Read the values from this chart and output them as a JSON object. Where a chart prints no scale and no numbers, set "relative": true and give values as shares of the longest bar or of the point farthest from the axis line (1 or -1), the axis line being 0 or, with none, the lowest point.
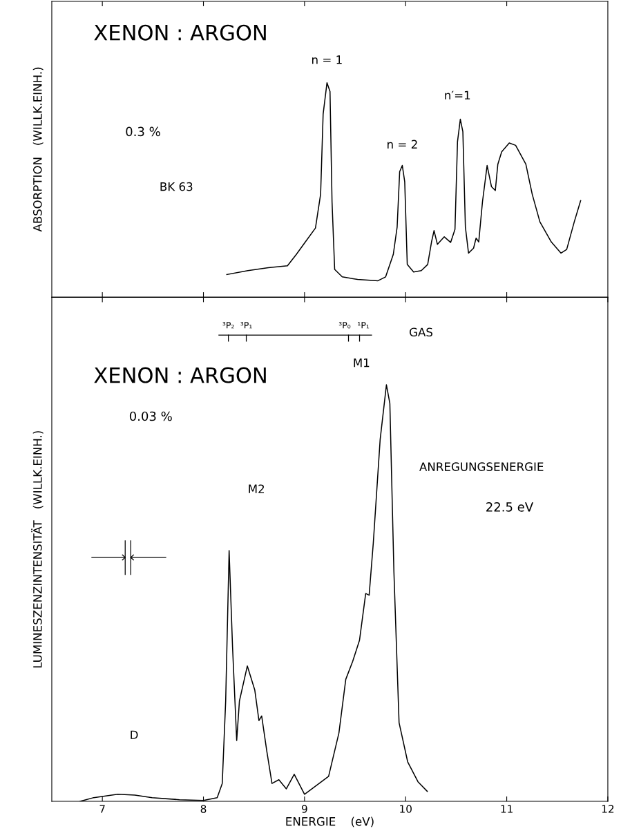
{
  "chart_data": [
    {
      "type": "line",
      "relative": true,
      "ylabel": "ABSORPTION   (WILLK.EINH.)",
      "xlim": [
        6.5,
        12
      ],
      "xticks": [
        7,
        8,
        9,
        10,
        11
      ],
      "tick_labels": false,
      "series": [
        {
          "color": "#000000",
          "x": [
            8.231,
            8.44,
            8.642,
            8.831,
            8.919,
            9.008,
            9.108,
            9.159,
            9.184,
            9.222,
            9.252,
            9.272,
            9.298,
            9.373,
            9.525,
            9.726,
            9.802,
            9.878,
            9.916,
            9.941,
            9.967,
            9.991,
            10.016,
            10.079,
            10.155,
            10.218,
            10.256,
            10.281,
            10.314,
            10.382,
            10.445,
            10.488,
            10.513,
            10.541,
            10.566,
            10.591,
            10.622,
            10.672,
            10.697,
            10.723,
            10.76,
            10.806,
            10.849,
            10.887,
            10.912,
            10.95,
            11.025,
            11.088,
            11.189,
            11.252,
            11.328,
            11.441,
            11.537,
            11.593,
            11.668,
            11.731
          ],
          "values": [
            0.105,
            0.123,
            0.137,
            0.146,
            0.199,
            0.257,
            0.322,
            0.48,
            0.854,
            1.0,
            0.959,
            0.444,
            0.129,
            0.094,
            0.082,
            0.076,
            0.094,
            0.199,
            0.327,
            0.585,
            0.614,
            0.538,
            0.152,
            0.117,
            0.123,
            0.152,
            0.257,
            0.31,
            0.246,
            0.281,
            0.255,
            0.316,
            0.725,
            0.83,
            0.772,
            0.327,
            0.205,
            0.228,
            0.275,
            0.257,
            0.444,
            0.614,
            0.515,
            0.497,
            0.62,
            0.678,
            0.719,
            0.708,
            0.62,
            0.48,
            0.351,
            0.257,
            0.205,
            0.222,
            0.351,
            0.45
          ]
        }
      ],
      "annotations": [
        "XENON : ARGON",
        "0.3 %",
        "BK 63",
        {
          "text": "n = 1",
          "x": 9.222,
          "y": 1.0
        },
        {
          "text": "n = 2",
          "x": 9.967,
          "y": 0.614
        },
        {
          "text": "n′=1",
          "x": 10.541,
          "y": 0.83
        }
      ]
    },
    {
      "type": "line",
      "relative": true,
      "ylabel": "LUMINESZENZINTENSITÄT   (WILLK.EINH.)",
      "xlabel": "ENERGIE    (eV)",
      "xlim": [
        6.5,
        12
      ],
      "xticks": [
        7,
        8,
        9,
        10,
        11,
        12
      ],
      "tick_labels": "x",
      "series": [
        {
          "color": "#000000",
          "x": [
            6.78,
            6.915,
            7.153,
            7.322,
            7.492,
            7.763,
            8.0,
            8.136,
            8.186,
            8.22,
            8.254,
            8.288,
            8.329,
            8.356,
            8.434,
            8.508,
            8.549,
            8.576,
            8.627,
            8.678,
            8.746,
            8.82,
            8.898,
            9.0,
            9.238,
            9.34,
            9.408,
            9.476,
            9.544,
            9.605,
            9.639,
            9.68,
            9.748,
            9.81,
            9.844,
            9.884,
            9.935,
            10.02,
            10.122,
            10.214
          ],
          "values": [
            0.0,
            0.009,
            0.017,
            0.015,
            0.009,
            0.004,
            0.002,
            0.009,
            0.043,
            0.241,
            0.602,
            0.37,
            0.146,
            0.241,
            0.325,
            0.267,
            0.194,
            0.205,
            0.12,
            0.043,
            0.052,
            0.03,
            0.065,
            0.017,
            0.06,
            0.164,
            0.293,
            0.336,
            0.387,
            0.499,
            0.495,
            0.62,
            0.869,
            1.0,
            0.955,
            0.551,
            0.189,
            0.095,
            0.047,
            0.024
          ]
        }
      ],
      "annotations": [
        "XENON : ARGON",
        "0.03 %",
        {
          "text": "M1",
          "x": 9.81,
          "y": 1.0
        },
        "M2",
        "D",
        "ANREGUNGSENERGIE",
        "22.5 eV",
        "³P₂",
        "³P₁",
        "³P₀",
        "¹P₁",
        "GAS"
      ]
    }
  ]
}
